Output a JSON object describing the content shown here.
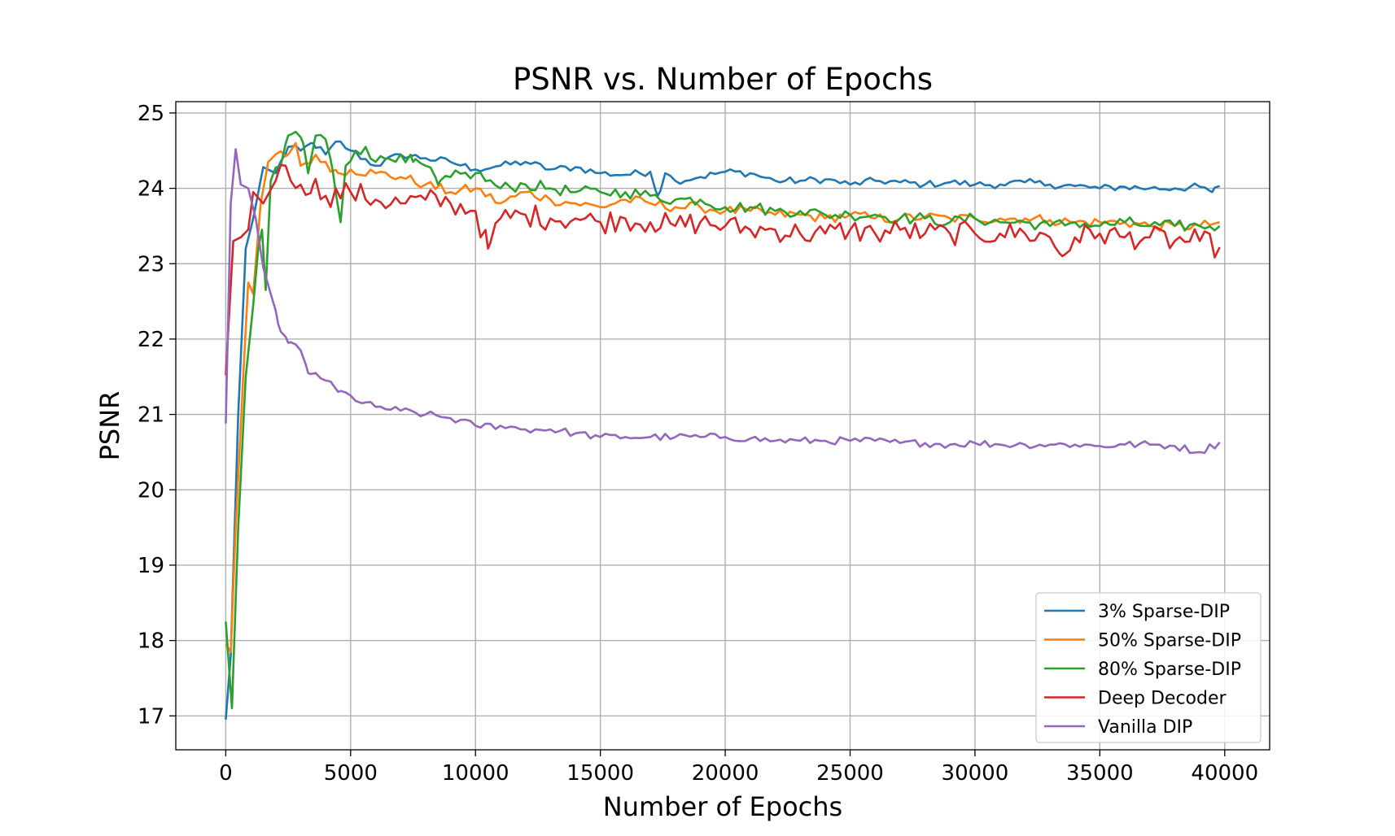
{
  "chart_data": {
    "type": "line",
    "title": "PSNR vs. Number of Epochs",
    "xlabel": "Number of Epochs",
    "ylabel": "PSNR",
    "xlim": [
      -2000,
      41800
    ],
    "ylim": [
      16.55,
      25.15
    ],
    "xticks": [
      0,
      5000,
      10000,
      15000,
      20000,
      25000,
      30000,
      35000,
      40000
    ],
    "yticks": [
      17,
      18,
      19,
      20,
      21,
      22,
      23,
      24,
      25
    ],
    "grid": true,
    "legend_position": "bottom-right",
    "series": [
      {
        "name": "3% Sparse-DIP",
        "color": "#1f77b4",
        "keypoints": [
          [
            0,
            16.95
          ],
          [
            200,
            17.8
          ],
          [
            500,
            21.0
          ],
          [
            800,
            23.2
          ],
          [
            1100,
            23.6
          ],
          [
            1500,
            24.28
          ],
          [
            2000,
            24.2
          ],
          [
            2500,
            24.55
          ],
          [
            3000,
            24.5
          ],
          [
            3500,
            24.6
          ],
          [
            4000,
            24.45
          ],
          [
            4500,
            24.62
          ],
          [
            5000,
            24.5
          ],
          [
            6000,
            24.3
          ],
          [
            7000,
            24.45
          ],
          [
            8000,
            24.4
          ],
          [
            9000,
            24.35
          ],
          [
            10000,
            24.25
          ],
          [
            11000,
            24.3
          ],
          [
            12000,
            24.35
          ],
          [
            13000,
            24.25
          ],
          [
            14000,
            24.28
          ],
          [
            15000,
            24.2
          ],
          [
            16000,
            24.18
          ],
          [
            17000,
            24.22
          ],
          [
            17300,
            23.9
          ],
          [
            17600,
            24.2
          ],
          [
            18000,
            24.1
          ],
          [
            19000,
            24.15
          ],
          [
            20000,
            24.22
          ],
          [
            21000,
            24.2
          ],
          [
            22000,
            24.1
          ],
          [
            23000,
            24.1
          ],
          [
            24000,
            24.12
          ],
          [
            25000,
            24.05
          ],
          [
            26000,
            24.1
          ],
          [
            27000,
            24.08
          ],
          [
            28000,
            24.05
          ],
          [
            29000,
            24.08
          ],
          [
            30000,
            24.05
          ],
          [
            31000,
            24.05
          ],
          [
            32000,
            24.08
          ],
          [
            33000,
            24.05
          ],
          [
            34000,
            24.03
          ],
          [
            35000,
            24.0
          ],
          [
            36000,
            24.02
          ],
          [
            37000,
            24.0
          ],
          [
            38000,
            24.0
          ],
          [
            39000,
            24.02
          ],
          [
            39500,
            23.95
          ],
          [
            39800,
            24.03
          ]
        ],
        "amp": 0.05
      },
      {
        "name": "50% Sparse-DIP",
        "color": "#ff7f0e",
        "keypoints": [
          [
            0,
            17.95
          ],
          [
            200,
            17.85
          ],
          [
            400,
            19.5
          ],
          [
            700,
            21.5
          ],
          [
            900,
            22.75
          ],
          [
            1100,
            22.6
          ],
          [
            1400,
            23.8
          ],
          [
            1700,
            24.35
          ],
          [
            2000,
            24.45
          ],
          [
            2500,
            24.45
          ],
          [
            2800,
            24.6
          ],
          [
            3000,
            24.3
          ],
          [
            3500,
            24.4
          ],
          [
            4000,
            24.35
          ],
          [
            4500,
            24.2
          ],
          [
            5000,
            24.25
          ],
          [
            6000,
            24.2
          ],
          [
            7000,
            24.15
          ],
          [
            8000,
            24.05
          ],
          [
            9000,
            23.95
          ],
          [
            10000,
            24.0
          ],
          [
            11000,
            23.8
          ],
          [
            12000,
            23.95
          ],
          [
            13000,
            23.85
          ],
          [
            14000,
            23.8
          ],
          [
            15000,
            23.75
          ],
          [
            16000,
            23.85
          ],
          [
            17000,
            23.8
          ],
          [
            18000,
            23.75
          ],
          [
            19000,
            23.75
          ],
          [
            20000,
            23.7
          ],
          [
            21000,
            23.7
          ],
          [
            22000,
            23.65
          ],
          [
            23000,
            23.65
          ],
          [
            24000,
            23.6
          ],
          [
            25000,
            23.65
          ],
          [
            26000,
            23.6
          ],
          [
            27000,
            23.6
          ],
          [
            28000,
            23.62
          ],
          [
            29000,
            23.6
          ],
          [
            30000,
            23.6
          ],
          [
            31000,
            23.6
          ],
          [
            32000,
            23.6
          ],
          [
            33000,
            23.58
          ],
          [
            34000,
            23.55
          ],
          [
            35000,
            23.55
          ],
          [
            36000,
            23.55
          ],
          [
            37000,
            23.5
          ],
          [
            38000,
            23.5
          ],
          [
            39000,
            23.5
          ],
          [
            39800,
            23.55
          ]
        ],
        "amp": 0.07
      },
      {
        "name": "80% Sparse-DIP",
        "color": "#2ca02c",
        "keypoints": [
          [
            0,
            18.25
          ],
          [
            250,
            17.1
          ],
          [
            500,
            19.5
          ],
          [
            800,
            21.5
          ],
          [
            1100,
            22.45
          ],
          [
            1300,
            23.2
          ],
          [
            1450,
            23.45
          ],
          [
            1600,
            22.65
          ],
          [
            1800,
            24.1
          ],
          [
            2200,
            24.3
          ],
          [
            2500,
            24.7
          ],
          [
            2800,
            24.75
          ],
          [
            3100,
            24.6
          ],
          [
            3300,
            24.2
          ],
          [
            3600,
            24.7
          ],
          [
            4000,
            24.65
          ],
          [
            4300,
            24.2
          ],
          [
            4600,
            23.55
          ],
          [
            4800,
            24.3
          ],
          [
            5200,
            24.5
          ],
          [
            5600,
            24.55
          ],
          [
            6000,
            24.35
          ],
          [
            6500,
            24.4
          ],
          [
            7000,
            24.45
          ],
          [
            7500,
            24.35
          ],
          [
            8000,
            24.3
          ],
          [
            8500,
            24.05
          ],
          [
            9000,
            24.15
          ],
          [
            10000,
            24.2
          ],
          [
            11000,
            24.0
          ],
          [
            12000,
            24.05
          ],
          [
            13000,
            24.0
          ],
          [
            14000,
            23.95
          ],
          [
            15000,
            23.95
          ],
          [
            16000,
            23.95
          ],
          [
            17000,
            23.9
          ],
          [
            18000,
            23.85
          ],
          [
            19000,
            23.85
          ],
          [
            20000,
            23.75
          ],
          [
            21000,
            23.75
          ],
          [
            22000,
            23.7
          ],
          [
            23000,
            23.7
          ],
          [
            24000,
            23.65
          ],
          [
            25000,
            23.65
          ],
          [
            26000,
            23.65
          ],
          [
            27000,
            23.6
          ],
          [
            28000,
            23.6
          ],
          [
            29000,
            23.55
          ],
          [
            30000,
            23.6
          ],
          [
            31000,
            23.55
          ],
          [
            32000,
            23.55
          ],
          [
            33000,
            23.5
          ],
          [
            34000,
            23.55
          ],
          [
            35000,
            23.5
          ],
          [
            36000,
            23.55
          ],
          [
            37000,
            23.5
          ],
          [
            38000,
            23.5
          ],
          [
            39000,
            23.5
          ],
          [
            39800,
            23.5
          ]
        ],
        "amp": 0.08
      },
      {
        "name": "Deep Decoder",
        "color": "#d62728",
        "keypoints": [
          [
            0,
            21.52
          ],
          [
            300,
            23.3
          ],
          [
            600,
            23.35
          ],
          [
            900,
            23.45
          ],
          [
            1100,
            23.95
          ],
          [
            1500,
            23.8
          ],
          [
            2000,
            24.1
          ],
          [
            2400,
            24.3
          ],
          [
            2600,
            24.1
          ],
          [
            3000,
            24.05
          ],
          [
            3500,
            24.05
          ],
          [
            4000,
            23.9
          ],
          [
            5000,
            23.95
          ],
          [
            6000,
            23.85
          ],
          [
            7000,
            23.8
          ],
          [
            8000,
            23.85
          ],
          [
            9000,
            23.8
          ],
          [
            10000,
            23.7
          ],
          [
            10500,
            23.2
          ],
          [
            11000,
            23.6
          ],
          [
            12000,
            23.65
          ],
          [
            13000,
            23.6
          ],
          [
            14000,
            23.6
          ],
          [
            15000,
            23.55
          ],
          [
            16000,
            23.6
          ],
          [
            17000,
            23.55
          ],
          [
            18000,
            23.5
          ],
          [
            19000,
            23.55
          ],
          [
            20000,
            23.5
          ],
          [
            21000,
            23.45
          ],
          [
            22000,
            23.45
          ],
          [
            23000,
            23.4
          ],
          [
            24000,
            23.4
          ],
          [
            25000,
            23.45
          ],
          [
            26000,
            23.4
          ],
          [
            27000,
            23.45
          ],
          [
            28000,
            23.4
          ],
          [
            29000,
            23.4
          ],
          [
            30000,
            23.4
          ],
          [
            31000,
            23.4
          ],
          [
            32000,
            23.4
          ],
          [
            33000,
            23.35
          ],
          [
            33500,
            23.1
          ],
          [
            34000,
            23.35
          ],
          [
            35000,
            23.4
          ],
          [
            36000,
            23.35
          ],
          [
            37000,
            23.35
          ],
          [
            38000,
            23.3
          ],
          [
            39000,
            23.3
          ],
          [
            39800,
            23.22
          ]
        ],
        "amp": 0.16
      },
      {
        "name": "Vanilla DIP",
        "color": "#9467bd",
        "keypoints": [
          [
            0,
            20.88
          ],
          [
            200,
            23.8
          ],
          [
            400,
            24.52
          ],
          [
            600,
            24.05
          ],
          [
            900,
            24.0
          ],
          [
            1200,
            23.6
          ],
          [
            1500,
            22.95
          ],
          [
            1800,
            22.6
          ],
          [
            2100,
            22.2
          ],
          [
            2500,
            21.95
          ],
          [
            3000,
            21.85
          ],
          [
            3300,
            21.55
          ],
          [
            3600,
            21.55
          ],
          [
            4000,
            21.45
          ],
          [
            4500,
            21.3
          ],
          [
            5000,
            21.25
          ],
          [
            5500,
            21.15
          ],
          [
            6000,
            21.1
          ],
          [
            7000,
            21.05
          ],
          [
            8000,
            21.0
          ],
          [
            9000,
            20.95
          ],
          [
            10000,
            20.85
          ],
          [
            11000,
            20.85
          ],
          [
            12000,
            20.8
          ],
          [
            13000,
            20.8
          ],
          [
            14000,
            20.75
          ],
          [
            15000,
            20.7
          ],
          [
            16000,
            20.7
          ],
          [
            17000,
            20.7
          ],
          [
            18000,
            20.7
          ],
          [
            19000,
            20.7
          ],
          [
            20000,
            20.7
          ],
          [
            21000,
            20.68
          ],
          [
            22000,
            20.65
          ],
          [
            23000,
            20.65
          ],
          [
            24000,
            20.65
          ],
          [
            25000,
            20.65
          ],
          [
            26000,
            20.65
          ],
          [
            27000,
            20.62
          ],
          [
            28000,
            20.62
          ],
          [
            29000,
            20.6
          ],
          [
            30000,
            20.62
          ],
          [
            31000,
            20.6
          ],
          [
            32000,
            20.6
          ],
          [
            33000,
            20.6
          ],
          [
            34000,
            20.6
          ],
          [
            35000,
            20.58
          ],
          [
            36000,
            20.6
          ],
          [
            37000,
            20.6
          ],
          [
            38000,
            20.58
          ],
          [
            39000,
            20.5
          ],
          [
            39800,
            20.63
          ]
        ],
        "amp": 0.05
      }
    ]
  }
}
